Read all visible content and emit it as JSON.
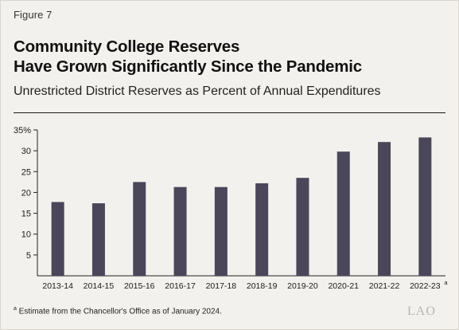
{
  "figure_label": "Figure 7",
  "title_line1": "Community College Reserves",
  "title_line2": "Have Grown Significantly Since the Pandemic",
  "subtitle": "Unrestricted District Reserves as Percent of Annual Expenditures",
  "footnote": {
    "marker": "a",
    "text": " Estimate from the Chancellor's Office as of January 2024."
  },
  "logo": "LAO",
  "colors": {
    "bar": "#4a475a",
    "background": "#f3f1ed",
    "axis": "#222222"
  },
  "chart_data": {
    "type": "bar",
    "categories": [
      "2013-14",
      "2014-15",
      "2015-16",
      "2016-17",
      "2017-18",
      "2018-19",
      "2019-20",
      "2020-21",
      "2021-22",
      "2022-23"
    ],
    "category_superscripts": [
      "",
      "",
      "",
      "",
      "",
      "",
      "",
      "",
      "",
      "a"
    ],
    "values": [
      17.7,
      17.4,
      22.5,
      21.3,
      21.3,
      22.2,
      23.5,
      29.8,
      32.1,
      33.2
    ],
    "yticks": [
      "5",
      "10",
      "15",
      "20",
      "25",
      "30",
      "35%"
    ],
    "ytick_values": [
      5,
      10,
      15,
      20,
      25,
      30,
      35
    ],
    "ylim": [
      0,
      35
    ],
    "grid": false
  }
}
